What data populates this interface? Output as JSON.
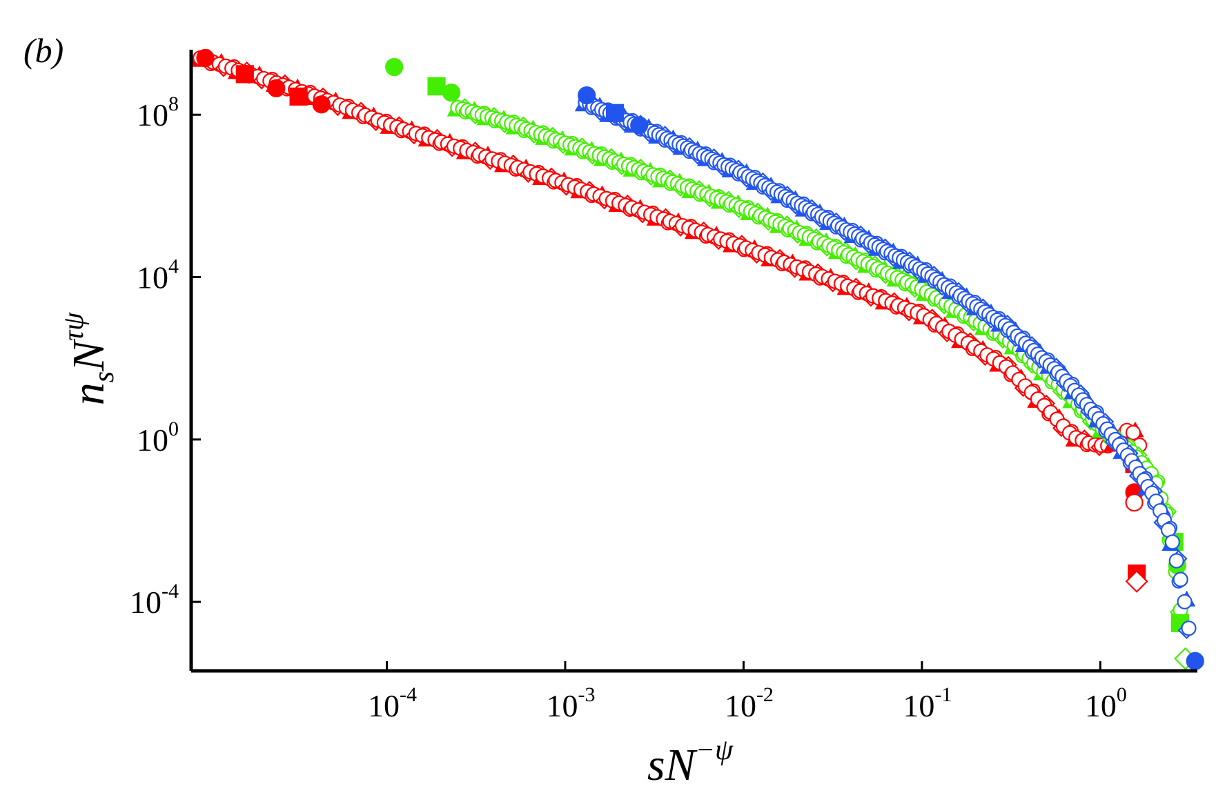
{
  "panel_label": "(b)",
  "chart_data": {
    "type": "scatter",
    "title": "",
    "xlabel": {
      "base": "sN",
      "sup": "−ψ"
    },
    "ylabel": {
      "base": "n",
      "sub": "s",
      "mid": "N",
      "sup": "τψ"
    },
    "x_scale": "log",
    "y_scale": "log",
    "xlim": [
      8e-06,
      3.5
    ],
    "ylim": [
      2e-06,
      4000000000
    ],
    "x_ticks": [
      {
        "value": 0.0001,
        "base": "10",
        "exp": "-4"
      },
      {
        "value": 0.001,
        "base": "10",
        "exp": "-3"
      },
      {
        "value": 0.01,
        "base": "10",
        "exp": "-2"
      },
      {
        "value": 0.1,
        "base": "10",
        "exp": "-1"
      },
      {
        "value": 1,
        "base": "10",
        "exp": "0"
      }
    ],
    "y_ticks": [
      {
        "value": 0.0001,
        "base": "10",
        "exp": "-4"
      },
      {
        "value": 1,
        "base": "10",
        "exp": "0"
      },
      {
        "value": 10000,
        "base": "10",
        "exp": "4"
      },
      {
        "value": 100000000,
        "base": "10",
        "exp": "8"
      }
    ],
    "grid": false,
    "legend": "none",
    "series": [
      {
        "color": "#ff0000",
        "curve_points": [
          [
            9e-06,
            2500000000
          ],
          [
            2e-05,
            800000000
          ],
          [
            5e-05,
            200000000
          ],
          [
            0.0001,
            60000000
          ],
          [
            0.0003,
            12000000
          ],
          [
            0.001,
            2000000
          ],
          [
            0.003,
            350000
          ],
          [
            0.01,
            55000
          ],
          [
            0.03,
            9000
          ],
          [
            0.1,
            1200
          ],
          [
            0.3,
            60
          ],
          [
            0.5,
            6
          ],
          [
            0.7,
            1.2
          ],
          [
            0.9,
            0.75
          ],
          [
            1.1,
            0.7
          ],
          [
            1.25,
            0.9
          ],
          [
            1.35,
            1.5
          ],
          [
            1.45,
            1.8
          ],
          [
            1.55,
            1.4
          ],
          [
            1.65,
            0.8
          ],
          [
            1.72,
            0.35
          ],
          [
            1.8,
            0.08
          ]
        ],
        "markers": [
          {
            "x": 9.6e-06,
            "y": 2500000000,
            "shape": "circle",
            "filled": true
          },
          {
            "x": 1.6e-05,
            "y": 1000000000,
            "shape": "square",
            "filled": true
          },
          {
            "x": 2.4e-05,
            "y": 450000000,
            "shape": "circle",
            "filled": true
          },
          {
            "x": 3.2e-05,
            "y": 280000000,
            "shape": "square",
            "filled": true
          },
          {
            "x": 4.3e-05,
            "y": 180000000,
            "shape": "circle",
            "filled": true
          },
          {
            "x": 1.55,
            "y": 0.25,
            "shape": "square",
            "filled": true
          },
          {
            "x": 1.55,
            "y": 0.05,
            "shape": "circle",
            "filled": true
          },
          {
            "x": 1.55,
            "y": 0.028,
            "shape": "circle",
            "filled": false
          },
          {
            "x": 1.6,
            "y": 0.0005,
            "shape": "square",
            "filled": true
          },
          {
            "x": 1.6,
            "y": 0.00032,
            "shape": "diamond",
            "filled": false
          }
        ]
      },
      {
        "color": "#44ee00",
        "curve_points": [
          [
            0.00025,
            150000000
          ],
          [
            0.0005,
            60000000
          ],
          [
            0.001,
            20000000
          ],
          [
            0.003,
            3500000
          ],
          [
            0.01,
            500000
          ],
          [
            0.03,
            60000
          ],
          [
            0.1,
            5000
          ],
          [
            0.3,
            300
          ],
          [
            0.6,
            20
          ],
          [
            1,
            2
          ],
          [
            1.5,
            0.5
          ],
          [
            2,
            0.12
          ],
          [
            2.4,
            0.01
          ],
          [
            2.6,
            0.001
          ],
          [
            2.8,
            8e-05
          ],
          [
            3,
            5e-06
          ]
        ],
        "markers": [
          {
            "x": 0.00011,
            "y": 1500000000,
            "shape": "circle",
            "filled": true
          },
          {
            "x": 0.00019,
            "y": 500000000,
            "shape": "square",
            "filled": true
          },
          {
            "x": 0.00023,
            "y": 350000000,
            "shape": "circle",
            "filled": true
          },
          {
            "x": 2.6,
            "y": 0.003,
            "shape": "square",
            "filled": true
          },
          {
            "x": 2.7,
            "y": 0.0008,
            "shape": "circle",
            "filled": true
          },
          {
            "x": 2.8,
            "y": 3e-05,
            "shape": "square",
            "filled": true
          },
          {
            "x": 3.0,
            "y": 4e-06,
            "shape": "diamond",
            "filled": false
          }
        ]
      },
      {
        "color": "#2255ee",
        "curve_points": [
          [
            0.0013,
            200000000
          ],
          [
            0.003,
            40000000
          ],
          [
            0.01,
            3500000
          ],
          [
            0.03,
            250000
          ],
          [
            0.1,
            15000
          ],
          [
            0.3,
            600
          ],
          [
            0.6,
            40
          ],
          [
            1,
            3
          ],
          [
            1.5,
            0.3
          ],
          [
            2,
            0.04
          ],
          [
            2.5,
            0.004
          ],
          [
            2.9,
            0.0002
          ],
          [
            3.3,
            5e-06
          ]
        ],
        "markers": [
          {
            "x": 0.00132,
            "y": 300000000,
            "shape": "circle",
            "filled": true
          },
          {
            "x": 0.0019,
            "y": 110000000,
            "shape": "square",
            "filled": true
          },
          {
            "x": 0.0026,
            "y": 55000000,
            "shape": "circle",
            "filled": true
          },
          {
            "x": 3.4,
            "y": 3.5e-06,
            "shape": "circle",
            "filled": true
          }
        ]
      }
    ]
  }
}
